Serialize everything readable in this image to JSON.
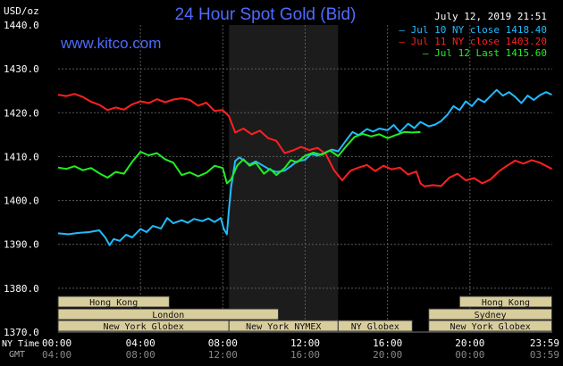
{
  "header": {
    "title": "24 Hour Spot Gold (Bid)",
    "units": "USD/oz",
    "timestamp": "July 12, 2019 21:51",
    "website": "www.kitco.com"
  },
  "chart_data": {
    "type": "line",
    "title": "24 Hour Spot Gold (Bid)",
    "ylabel": "USD/oz",
    "ylim": [
      1370,
      1440
    ],
    "y_ticks": [
      "1440.0",
      "1430.0",
      "1420.0",
      "1410.0",
      "1400.0",
      "1390.0",
      "1380.0",
      "1370.0"
    ],
    "xlim": [
      0,
      24
    ],
    "x_ticks_ny": [
      "00:00",
      "04:00",
      "08:00",
      "12:00",
      "16:00",
      "20:00",
      "23:59"
    ],
    "x_ticks_gmt": [
      "04:00",
      "08:00",
      "12:00",
      "16:00",
      "20:00",
      "00:00",
      "03:59"
    ],
    "x_axis_labels": {
      "ny": "NY Time",
      "gmt": "GMT"
    },
    "grid": true,
    "shaded_range": [
      8.3,
      13.6
    ],
    "legend_position": "top-right",
    "series": [
      {
        "name": "Jul 10 NY close 1418.40",
        "color": "#22bbff",
        "x": [
          0,
          0.5,
          1,
          1.5,
          2,
          2.3,
          2.5,
          2.7,
          3,
          3.3,
          3.6,
          4,
          4.3,
          4.6,
          5,
          5.3,
          5.6,
          6,
          6.3,
          6.6,
          7,
          7.3,
          7.6,
          7.9,
          8.05,
          8.2,
          8.3,
          8.4,
          8.6,
          8.8,
          9,
          9.3,
          9.6,
          10,
          10.3,
          10.6,
          11,
          11.3,
          11.6,
          12,
          12.3,
          12.6,
          13,
          13.3,
          13.6,
          14,
          14.3,
          14.6,
          15,
          15.3,
          15.6,
          16,
          16.3,
          16.6,
          17,
          17.3,
          17.6,
          18,
          18.3,
          18.6,
          18.9,
          19.2,
          19.5,
          19.8,
          20.1,
          20.4,
          20.7,
          21,
          21.3,
          21.6,
          21.9,
          22.2,
          22.5,
          22.8,
          23.1,
          23.4,
          23.7,
          23.98
        ],
        "values": [
          1392.5,
          1392.3,
          1392.6,
          1392.8,
          1393.2,
          1391.5,
          1389.8,
          1391.2,
          1390.8,
          1392.2,
          1391.6,
          1393.5,
          1392.8,
          1394.2,
          1393.6,
          1396,
          1394.8,
          1395.5,
          1394.9,
          1395.8,
          1395.3,
          1395.9,
          1395.1,
          1396,
          1393.5,
          1392.3,
          1398,
          1403,
          1409,
          1409.8,
          1409.2,
          1408.2,
          1408.9,
          1407.8,
          1407,
          1406.5,
          1406.8,
          1407.8,
          1408.9,
          1409.3,
          1410.6,
          1410.2,
          1411,
          1411.6,
          1411.2,
          1413.8,
          1415.6,
          1414.9,
          1416.3,
          1415.7,
          1416.4,
          1416,
          1417.2,
          1415.6,
          1417.5,
          1416.5,
          1417.9,
          1416.9,
          1417.3,
          1418.1,
          1419.5,
          1421.5,
          1420.6,
          1422.6,
          1421.5,
          1423.2,
          1422.4,
          1423.8,
          1425.2,
          1423.9,
          1424.7,
          1423.6,
          1422.2,
          1423.9,
          1422.9,
          1424,
          1424.7,
          1424.1
        ]
      },
      {
        "name": "Jul 11 NY close 1403.20",
        "color": "#ff2020",
        "x": [
          0,
          0.4,
          0.8,
          1.2,
          1.6,
          2,
          2.4,
          2.8,
          3.2,
          3.6,
          4,
          4.4,
          4.8,
          5.2,
          5.6,
          6,
          6.4,
          6.8,
          7.2,
          7.6,
          8,
          8.3,
          8.6,
          9,
          9.4,
          9.8,
          10.2,
          10.6,
          11,
          11.4,
          11.8,
          12.2,
          12.6,
          13,
          13.4,
          13.8,
          14.2,
          14.6,
          15,
          15.4,
          15.8,
          16.2,
          16.6,
          17,
          17.4,
          17.6,
          17.8,
          18.2,
          18.6,
          19,
          19.4,
          19.8,
          20.2,
          20.6,
          21,
          21.4,
          21.8,
          22.2,
          22.6,
          23,
          23.4,
          23.98
        ],
        "values": [
          1424.1,
          1423.8,
          1424.3,
          1423.6,
          1422.5,
          1421.8,
          1420.6,
          1421.2,
          1420.7,
          1421.9,
          1422.6,
          1422.2,
          1423.1,
          1422.4,
          1423,
          1423.3,
          1422.9,
          1421.6,
          1422.3,
          1420.4,
          1420.6,
          1419.2,
          1415.5,
          1416.4,
          1415.1,
          1415.9,
          1414.2,
          1413.6,
          1410.8,
          1411.4,
          1412.2,
          1411.5,
          1412,
          1410.6,
          1406.9,
          1404.6,
          1406.8,
          1407.5,
          1408.1,
          1406.7,
          1407.9,
          1407.1,
          1407.5,
          1405.9,
          1406.6,
          1403.9,
          1403.2,
          1403.5,
          1403.3,
          1405.2,
          1406.1,
          1404.6,
          1405.1,
          1403.9,
          1404.8,
          1406.6,
          1407.9,
          1409.1,
          1408.4,
          1409.2,
          1408.6,
          1407.2
        ]
      },
      {
        "name": "Jul 12 Last 1415.60",
        "color": "#22ee22",
        "x": [
          0,
          0.4,
          0.8,
          1.2,
          1.6,
          2,
          2.4,
          2.8,
          3.2,
          3.6,
          4,
          4.4,
          4.8,
          5.2,
          5.6,
          6,
          6.4,
          6.8,
          7.2,
          7.6,
          8,
          8.2,
          8.4,
          8.7,
          9,
          9.3,
          9.6,
          10,
          10.3,
          10.6,
          11,
          11.3,
          11.6,
          12,
          12.4,
          12.8,
          13.2,
          13.6,
          14,
          14.4,
          14.8,
          15.2,
          15.6,
          16,
          16.4,
          16.8,
          17.2,
          17.6
        ],
        "values": [
          1407.5,
          1407.2,
          1407.8,
          1406.9,
          1407.4,
          1406.2,
          1405.2,
          1406.5,
          1406.1,
          1408.8,
          1411.1,
          1410.3,
          1410.8,
          1409.4,
          1408.6,
          1405.8,
          1406.4,
          1405.5,
          1406.3,
          1407.9,
          1407.4,
          1403.9,
          1404.8,
          1408,
          1409.4,
          1407.9,
          1408.6,
          1406.1,
          1407.2,
          1405.8,
          1407.4,
          1409.2,
          1408.7,
          1410.2,
          1410.9,
          1410.4,
          1411.4,
          1410.1,
          1412.4,
          1414.5,
          1415.2,
          1414.6,
          1415.1,
          1414.2,
          1414.9,
          1415.6,
          1415.5,
          1415.6
        ]
      }
    ],
    "sessions": [
      {
        "label": "Hong Kong",
        "start": 0,
        "end": 5.4,
        "row": 0
      },
      {
        "label": "London",
        "start": 0,
        "end": 10.7,
        "row": 1
      },
      {
        "label": "New York Globex",
        "start": 0,
        "end": 8.3,
        "row": 2
      },
      {
        "label": "New York NYMEX",
        "start": 8.3,
        "end": 13.6,
        "row": 2
      },
      {
        "label": "NY Globex",
        "start": 13.6,
        "end": 17.2,
        "row": 2
      },
      {
        "label": "Hong Kong",
        "start": 19.5,
        "end": 23.98,
        "row": 0
      },
      {
        "label": "Sydney",
        "start": 18,
        "end": 23.98,
        "row": 1
      },
      {
        "label": "New York Globex",
        "start": 18,
        "end": 23.98,
        "row": 2
      }
    ]
  }
}
